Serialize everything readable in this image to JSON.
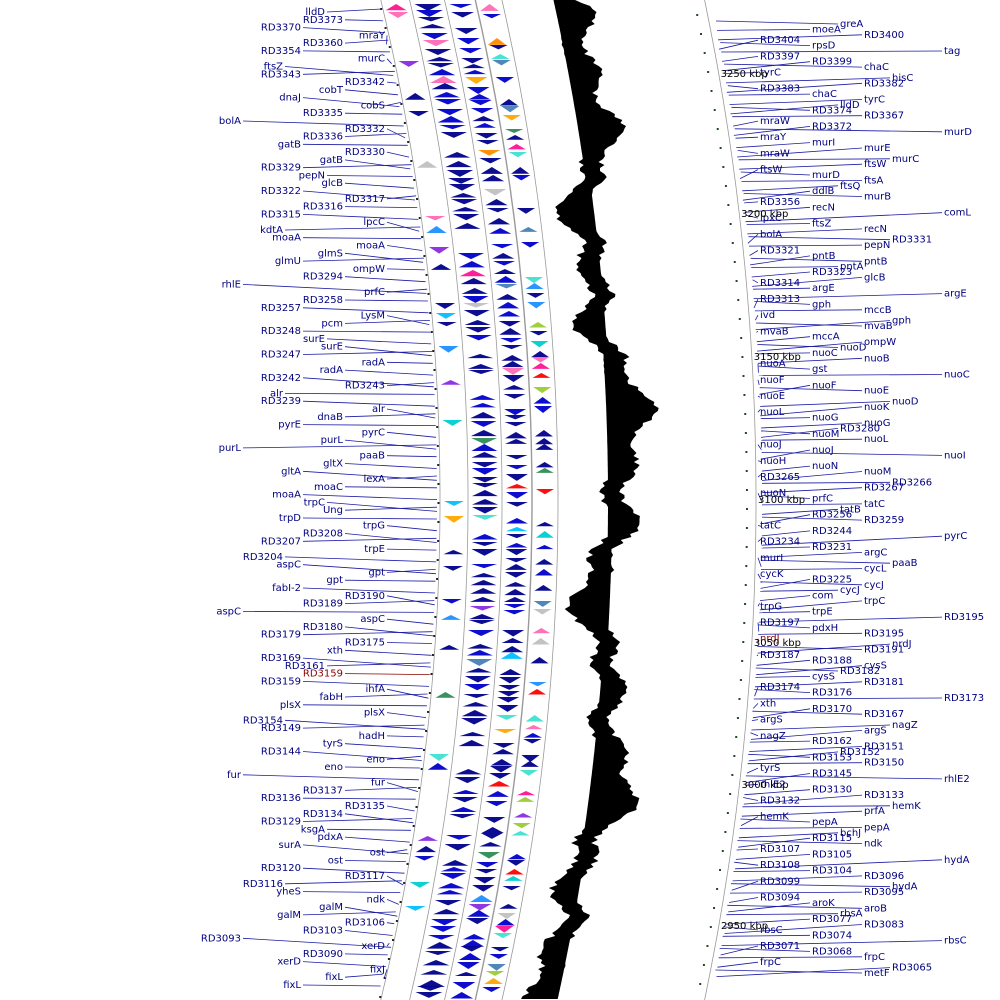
{
  "colors": {
    "label": "#000080",
    "highlight": "#8b0000",
    "leader": "#1a1aa6",
    "gc_skew": "#000000",
    "ring": "#9a9a9a"
  },
  "scale_labels": [
    "3250 kbp",
    "3200 kbp",
    "3150 kbp",
    "3100 kbp",
    "3050 kbp",
    "3000 kbp",
    "2950 kbp"
  ],
  "left_labels": [
    "lldD",
    "RD3373",
    "RD3370",
    "mraY",
    "RD3360",
    "RD3354",
    "murC",
    "ftsZ",
    "RD3343",
    "RD3342",
    "cobT",
    "dnaJ",
    "cobS",
    "RD3335",
    "bolA",
    "RD3332",
    "RD3336",
    "gatB",
    "RD3330",
    "gatB",
    "RD3329",
    "pepN",
    "glcB",
    "RD3322",
    "RD3317",
    "RD3316",
    "RD3315",
    "lpcC",
    "kdtA",
    "moaA",
    "moaA",
    "glmS",
    "glmU",
    "ompW",
    "RD3294",
    "rhlE",
    "prfC",
    "RD3258",
    "RD3257",
    "LysM",
    "pcm",
    "RD3248",
    "surE",
    "surE",
    "RD3247",
    "radA",
    "radA",
    "RD3242",
    "RD3243",
    "alr",
    "RD3239",
    "alr",
    "dnaB",
    "pyrE",
    "pyrC",
    "purL",
    "purL",
    "paaB",
    "gltX",
    "gltA",
    "lexA",
    "moaC",
    "moaA",
    "trpC",
    "Ung",
    "trpD",
    "trpG",
    "RD3208",
    "RD3207",
    "trpE",
    "RD3204",
    "aspC",
    "gpt",
    "gpt",
    "fabI-2",
    "RD3190",
    "RD3189",
    "aspC",
    "aspC",
    "RD3180",
    "RD3179",
    "RD3175",
    "xth",
    "RD3169",
    "RD3161",
    "RD3159",
    "RD3159",
    "ihfA",
    "fabH",
    "plsX",
    "plsX",
    "RD3154",
    "RD3149",
    "hadH",
    "tyrS",
    "RD3144",
    "eno",
    "eno",
    "fur",
    "fur",
    "RD3137",
    "RD3136",
    "RD3135",
    "RD3134",
    "RD3129",
    "ksgA",
    "pdxA",
    "surA",
    "ost",
    "ost",
    "RD3120",
    "RD3117",
    "RD3116",
    "yheS",
    "ndk",
    "galM",
    "galM",
    "RD3106",
    "RD3103",
    "RD3093",
    "xerD",
    "RD3090",
    "xerD",
    "fixJ",
    "fixL",
    "fixL"
  ],
  "right_labels": [
    "greA",
    "moeA",
    "RD3400",
    "RD3404",
    "rpsD",
    "tag",
    "RD3397",
    "RD3399",
    "chaC",
    "tyrC",
    "hisC",
    "RD3382",
    "RD3383",
    "chaC",
    "tyrC",
    "lldD",
    "RD3374",
    "RD3367",
    "mraW",
    "RD3372",
    "murD",
    "mraY",
    "murI",
    "murE",
    "mraW",
    "murC",
    "ftsW",
    "ftsW",
    "murD",
    "ftsA",
    "ftsQ",
    "ddlB",
    "murB",
    "RD3356",
    "recN",
    "comL",
    "lpxC",
    "ftsZ",
    "recN",
    "bolA",
    "RD3331",
    "pepN",
    "RD3321",
    "pntB",
    "pntB",
    "pntA",
    "RD3323",
    "glcB",
    "RD3314",
    "argE",
    "argE",
    "RD3313",
    "gph",
    "mccB",
    "ivd",
    "gph",
    "mvaB",
    "mvaB",
    "mccA",
    "ompW",
    "nuoD",
    "nuoC",
    "nuoB",
    "nuoA",
    "gst",
    "nuoC",
    "nuoF",
    "nuoF",
    "nuoE",
    "nuoE",
    "nuoD",
    "nuoK",
    "nuoL",
    "nuoG",
    "nuoG",
    "RD3280",
    "nuoM",
    "nuoL",
    "nuoJ",
    "nuoJ",
    "nuoI",
    "nuoH",
    "nuoN",
    "nuoM",
    "RD3265",
    "RD3266",
    "RD3267",
    "nuoN",
    "prfC",
    "tatC",
    "tatB",
    "RD3256",
    "RD3259",
    "tatC",
    "RD3244",
    "pyrC",
    "RD3234",
    "RD3231",
    "argC",
    "murI",
    "paaB",
    "cycL",
    "cycK",
    "RD3225",
    "cycJ",
    "cycJ",
    "com",
    "trpC",
    "trpG",
    "trpE",
    "RD3195",
    "RD3197",
    "pdxH",
    "RD3195",
    "nrdJ",
    "nrdJ",
    "RD3191",
    "RD3187",
    "RD3188",
    "cysS",
    "RD3182",
    "cysS",
    "RD3181",
    "RD3174",
    "RD3176",
    "RD3173",
    "xth",
    "RD3170",
    "RD3167",
    "argS",
    "nagZ",
    "argS",
    "nagZ",
    "RD3162",
    "RD3151",
    "RD3152",
    "RD3153",
    "RD3150",
    "tyrS",
    "RD3145",
    "rhlE2",
    "rhlE2",
    "RD3130",
    "RD3133",
    "RD3132",
    "hemK",
    "prfA",
    "hemK",
    "pepA",
    "pepA",
    "bchJ",
    "RD3115",
    "ndk",
    "RD3107",
    "RD3105",
    "hydA",
    "RD3108",
    "RD3104",
    "RD3096",
    "RD3099",
    "hydA",
    "RD3095",
    "RD3094",
    "aroK",
    "aroB",
    "rbsA",
    "RD3077",
    "RD3083",
    "rbsC",
    "RD3074",
    "rbsC",
    "RD3071",
    "RD3068",
    "frpC",
    "frpC",
    "RD3065",
    "metF"
  ]
}
